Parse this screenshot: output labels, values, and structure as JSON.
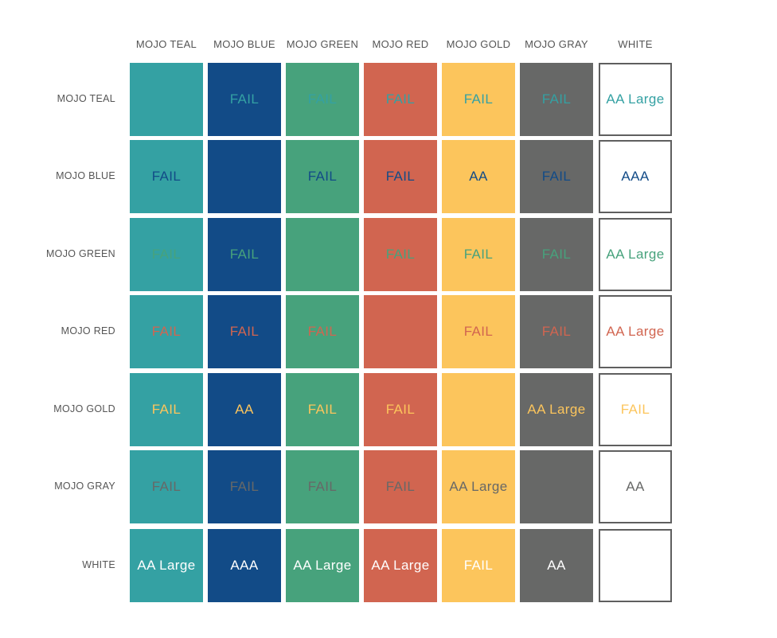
{
  "colors": [
    {
      "name": "MOJO TEAL",
      "hex": "#34a1a3"
    },
    {
      "name": "MOJO BLUE",
      "hex": "#124b87"
    },
    {
      "name": "MOJO GREEN",
      "hex": "#47a27c"
    },
    {
      "name": "MOJO RED",
      "hex": "#d16550"
    },
    {
      "name": "MOJO GOLD",
      "hex": "#fcc55c"
    },
    {
      "name": "MOJO GRAY",
      "hex": "#676867"
    },
    {
      "name": "WHITE",
      "hex": "#ffffff"
    }
  ],
  "column_headers": [
    "MOJO TEAL",
    "MOJO BLUE",
    "MOJO GREEN",
    "MOJO RED",
    "MOJO GOLD",
    "MOJO GRAY",
    "WHITE"
  ],
  "row_headers": [
    "MOJO TEAL",
    "MOJO BLUE",
    "MOJO GREEN",
    "MOJO RED",
    "MOJO GOLD",
    "MOJO GRAY",
    "WHITE"
  ],
  "matrix": [
    [
      "",
      "FAIL",
      "FAIL",
      "FAIL",
      "FAIL",
      "FAIL",
      "AA Large"
    ],
    [
      "FAIL",
      "",
      "FAIL",
      "FAIL",
      "AA",
      "FAIL",
      "AAA"
    ],
    [
      "FAIL",
      "FAIL",
      "",
      "FAIL",
      "FAIL",
      "FAIL",
      "AA Large"
    ],
    [
      "FAIL",
      "FAIL",
      "FAIL",
      "",
      "FAIL",
      "FAIL",
      "AA Large"
    ],
    [
      "FAIL",
      "AA",
      "FAIL",
      "FAIL",
      "",
      "AA Large",
      "FAIL"
    ],
    [
      "FAIL",
      "FAIL",
      "FAIL",
      "FAIL",
      "AA Large",
      "",
      "AA"
    ],
    [
      "AA Large",
      "AAA",
      "AA Large",
      "AA Large",
      "FAIL",
      "AA",
      ""
    ]
  ]
}
